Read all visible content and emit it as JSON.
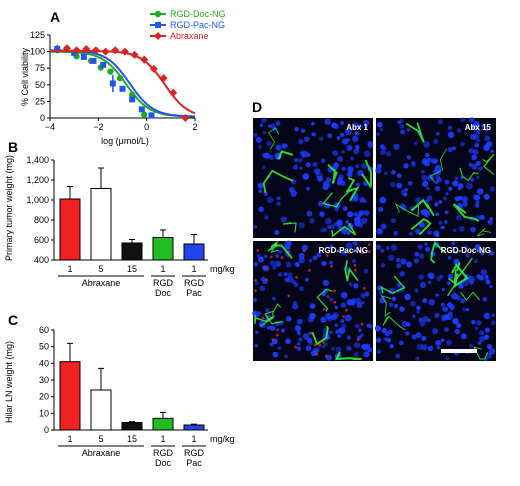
{
  "panels": {
    "A": {
      "label": "A",
      "chart_data": {
        "type": "scatter",
        "xlabel": "log (μmol/L)",
        "ylabel": "% Cell viability",
        "xlim": [
          -4,
          2
        ],
        "ylim": [
          0,
          125
        ],
        "xticks": [
          "−4",
          "−2",
          "0",
          "2"
        ],
        "yticks": [
          "0",
          "25",
          "50",
          "75",
          "100",
          "125"
        ],
        "legend_position": "top-right",
        "series": [
          {
            "name": "RGD-Doc-NG",
            "color": "#22aa22",
            "marker": "circle",
            "x": [
              -3.7,
              -2.9,
              -2.3,
              -1.9,
              -1.5,
              -1.1,
              -0.6,
              -0.1
            ],
            "y": [
              102,
              93,
              86,
              76,
              70,
              60,
              35,
              5
            ],
            "fit": {
              "top": 100,
              "bottom": 2,
              "log_ic50": -0.85,
              "hill": 0.9
            }
          },
          {
            "name": "RGD-Pac-NG",
            "color": "#2255ee",
            "marker": "square",
            "x": [
              -3.7,
              -3.0,
              -2.6,
              -2.2,
              -1.8,
              -1.4,
              -1.0,
              -0.6,
              -0.2,
              0.2
            ],
            "y": [
              104,
              98,
              92,
              86,
              80,
              52,
              44,
              28,
              13,
              4
            ],
            "err": [
              6,
              0,
              0,
              0,
              0,
              13,
              0,
              0,
              0,
              0
            ],
            "fit": {
              "top": 102,
              "bottom": 2,
              "log_ic50": -0.7,
              "hill": 0.9
            }
          },
          {
            "name": "Abraxane",
            "color": "#dd2222",
            "marker": "diamond",
            "x": [
              -3.3,
              -2.9,
              -2.5,
              -2.1,
              -1.7,
              -1.3,
              -0.9,
              -0.5,
              -0.1,
              0.3,
              0.7,
              1.1,
              1.6
            ],
            "y": [
              105,
              102,
              104,
              102,
              100,
              102,
              100,
              95,
              88,
              74,
              60,
              38,
              0
            ],
            "fit": {
              "top": 101,
              "bottom": 0,
              "log_ic50": 0.75,
              "hill": 0.9
            }
          }
        ]
      }
    },
    "B": {
      "label": "B",
      "chart_data": {
        "type": "bar",
        "ylabel": "Primary tumor weight (mg)",
        "ylim": [
          400,
          1400
        ],
        "yticks": [
          "400",
          "600",
          "800",
          "1,000",
          "1,200",
          "1,400"
        ],
        "categories": [
          "1",
          "5",
          "15",
          "1",
          "1"
        ],
        "values": [
          1010,
          1115,
          570,
          625,
          560
        ],
        "errors": [
          125,
          205,
          35,
          75,
          95
        ],
        "colors": [
          "#ee2222",
          "#ffffff",
          "#111111",
          "#22bb22",
          "#2244ee"
        ],
        "unit_label": "mg/kg",
        "groups": [
          {
            "lines": [
              "Abraxane"
            ],
            "from": 0,
            "to": 2
          },
          {
            "lines": [
              "RGD",
              "Doc"
            ],
            "from": 3,
            "to": 3
          },
          {
            "lines": [
              "RGD",
              "Pac"
            ],
            "from": 4,
            "to": 4
          }
        ]
      }
    },
    "C": {
      "label": "C",
      "chart_data": {
        "type": "bar",
        "ylabel": "Hilar LN weight (mg)",
        "ylim": [
          0,
          60
        ],
        "yticks": [
          "0",
          "10",
          "20",
          "30",
          "40",
          "50",
          "60"
        ],
        "categories": [
          "1",
          "5",
          "15",
          "1",
          "1"
        ],
        "values": [
          41,
          24,
          4.5,
          7,
          3
        ],
        "errors": [
          11,
          13,
          0.5,
          3.5,
          0.5
        ],
        "colors": [
          "#ee2222",
          "#ffffff",
          "#111111",
          "#22bb22",
          "#2244ee"
        ],
        "unit_label": "mg/kg",
        "groups": [
          {
            "lines": [
              "Abraxane"
            ],
            "from": 0,
            "to": 2
          },
          {
            "lines": [
              "RGD",
              "Doc"
            ],
            "from": 3,
            "to": 3
          },
          {
            "lines": [
              "RGD",
              "Pac"
            ],
            "from": 4,
            "to": 4
          }
        ]
      }
    },
    "D": {
      "label": "D",
      "images": [
        {
          "label": "Abx 1"
        },
        {
          "label": "Abx 15"
        },
        {
          "label": "RGD-Pac-NG"
        },
        {
          "label": "RGD-Doc-NG"
        }
      ],
      "colors": {
        "nuclei": "#1c3cff",
        "vessels": "#2ef03a",
        "background": "#050519"
      }
    }
  }
}
